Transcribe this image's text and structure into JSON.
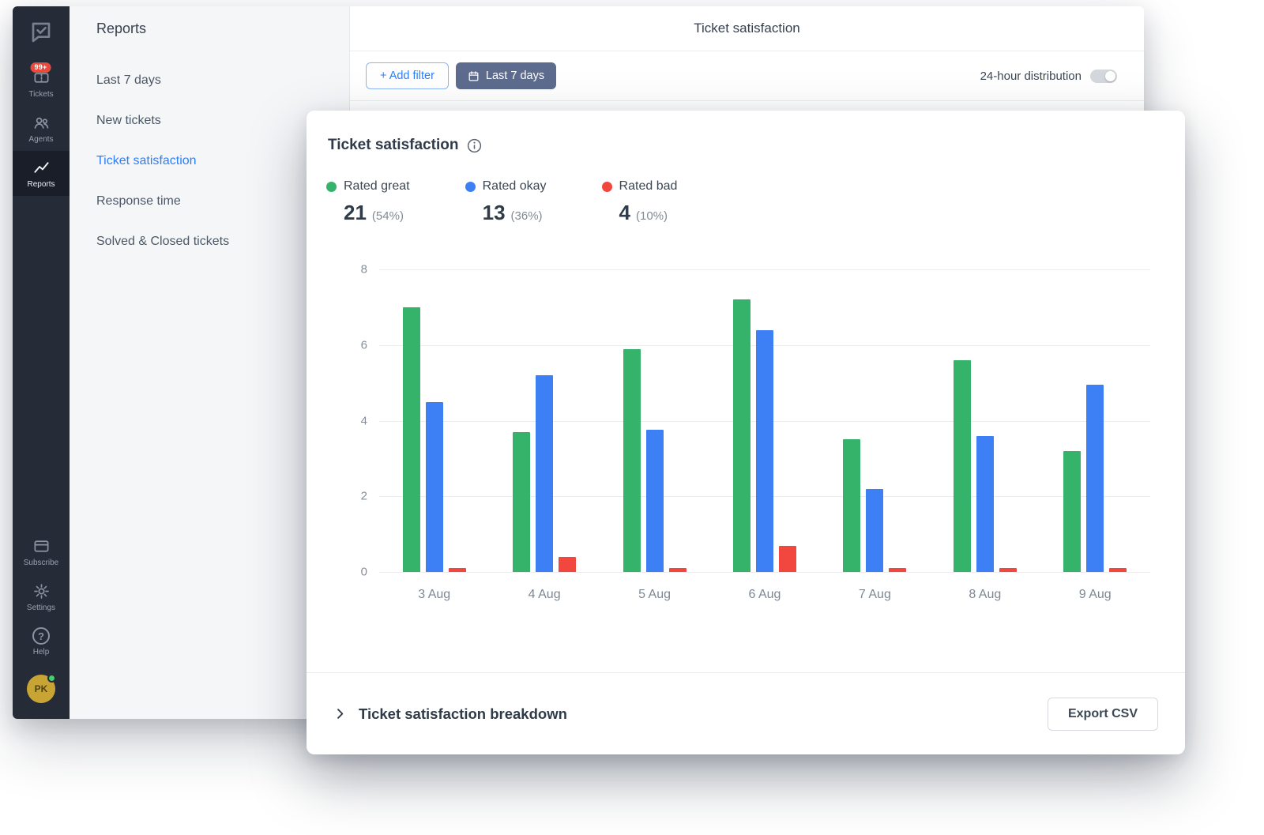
{
  "nav": {
    "items": [
      {
        "id": "tickets",
        "label": "Tickets",
        "badge": "99+"
      },
      {
        "id": "agents",
        "label": "Agents"
      },
      {
        "id": "reports",
        "label": "Reports",
        "active": true
      }
    ],
    "bottom_items": [
      {
        "id": "subscribe",
        "label": "Subscribe"
      },
      {
        "id": "settings",
        "label": "Settings"
      },
      {
        "id": "help",
        "label": "Help"
      }
    ],
    "help_glyph": "?",
    "avatar_initials": "PK"
  },
  "sidebar": {
    "title": "Reports",
    "items": [
      "Last 7 days",
      "New tickets",
      "Ticket satisfaction",
      "Response time",
      "Solved & Closed tickets"
    ],
    "active_item": "Ticket satisfaction"
  },
  "header": {
    "title": "Ticket satisfaction"
  },
  "toolbar": {
    "add_filter_label": "+ Add filter",
    "date_filter_label": "Last 7 days",
    "distribution_toggle_label": "24-hour distribution",
    "distribution_toggle_on": false
  },
  "card": {
    "title": "Ticket satisfaction",
    "legend": [
      {
        "label": "Rated great",
        "value": "21",
        "percent": "(54%)",
        "color": "#35b36b"
      },
      {
        "label": "Rated okay",
        "value": "13",
        "percent": "(36%)",
        "color": "#3d7ff5"
      },
      {
        "label": "Rated bad",
        "value": "4",
        "percent": "(10%)",
        "color": "#f2473f"
      }
    ],
    "footer": {
      "breakdown_label": "Ticket satisfaction breakdown",
      "export_label": "Export CSV"
    }
  },
  "chart_data": {
    "type": "bar",
    "title": "Ticket satisfaction",
    "categories": [
      "3 Aug",
      "4 Aug",
      "5 Aug",
      "6 Aug",
      "7 Aug",
      "8 Aug",
      "9 Aug"
    ],
    "series": [
      {
        "name": "Rated great",
        "color": "#35b36b",
        "values": [
          7.0,
          3.7,
          5.9,
          7.2,
          3.5,
          5.6,
          3.2
        ]
      },
      {
        "name": "Rated okay",
        "color": "#3d7ff5",
        "values": [
          4.5,
          5.2,
          3.75,
          6.4,
          2.2,
          3.6,
          4.95
        ]
      },
      {
        "name": "Rated bad",
        "color": "#f2473f",
        "values": [
          0.1,
          0.4,
          0.1,
          0.7,
          0.1,
          0.1,
          0.1
        ]
      }
    ],
    "xlabel": "",
    "ylabel": "",
    "ylim": [
      0,
      8
    ],
    "yticks": [
      0,
      2,
      4,
      6,
      8
    ],
    "grid": true,
    "legend_position": "top"
  }
}
